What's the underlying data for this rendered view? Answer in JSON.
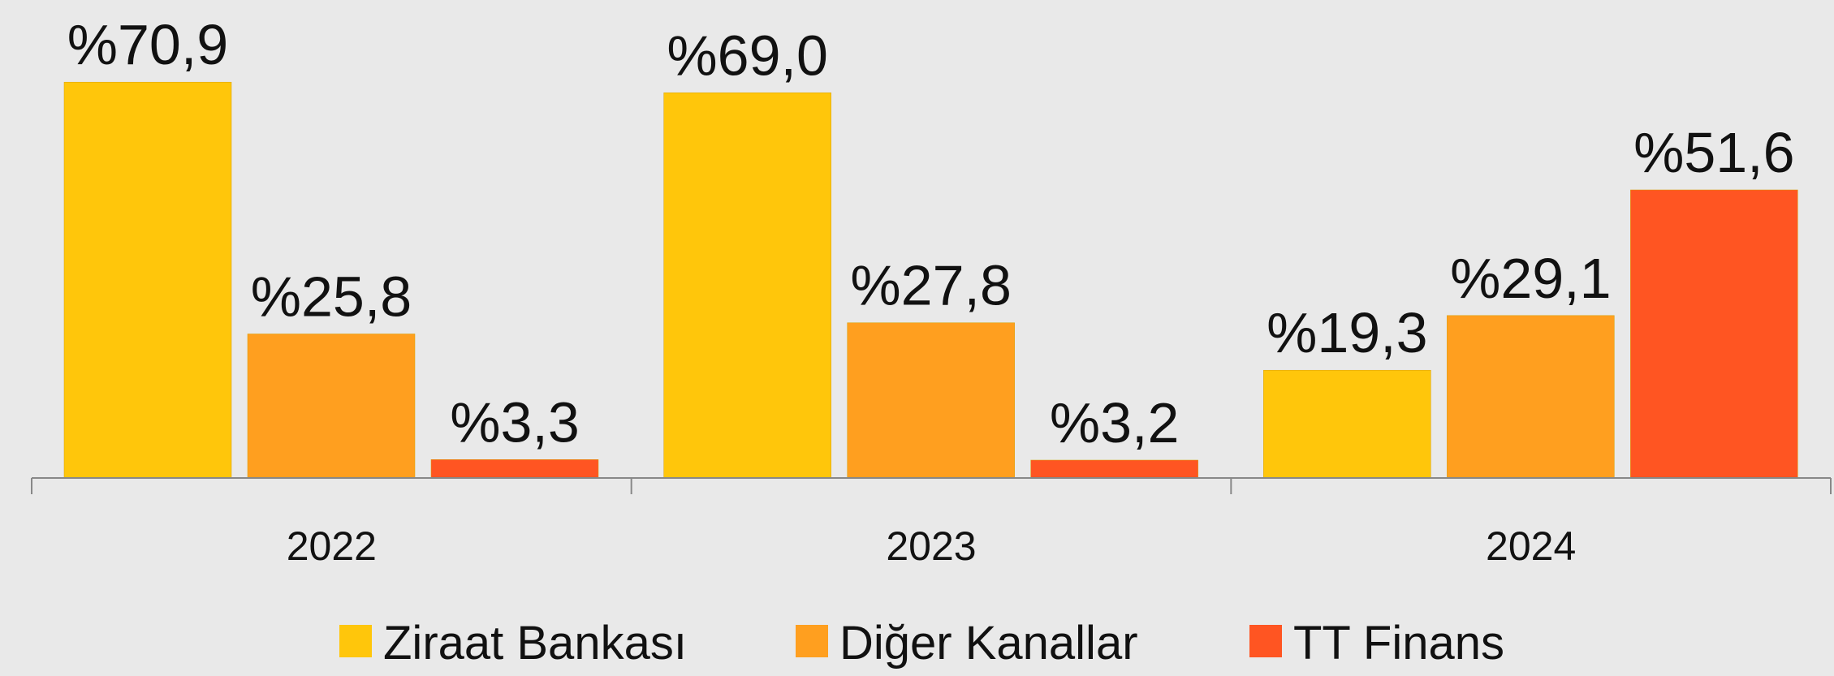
{
  "chart_data": {
    "type": "bar",
    "categories": [
      "2022",
      "2023",
      "2024"
    ],
    "series": [
      {
        "name": "Ziraat Bankası",
        "color": "#ffc60b",
        "values": [
          70.9,
          69.0,
          19.3
        ],
        "value_labels": [
          "%70,9",
          "%69,0",
          "%19,3"
        ]
      },
      {
        "name": "Diğer Kanallar",
        "color": "#ff9f1f",
        "values": [
          25.8,
          27.8,
          29.1
        ],
        "value_labels": [
          "%25,8",
          "%27,8",
          "%29,1"
        ]
      },
      {
        "name": "TT Finans",
        "color": "#ff5522",
        "values": [
          3.3,
          3.2,
          51.6
        ],
        "value_labels": [
          "%3,3",
          "%3,2",
          "%51,6"
        ]
      }
    ],
    "legend": "bottom"
  }
}
